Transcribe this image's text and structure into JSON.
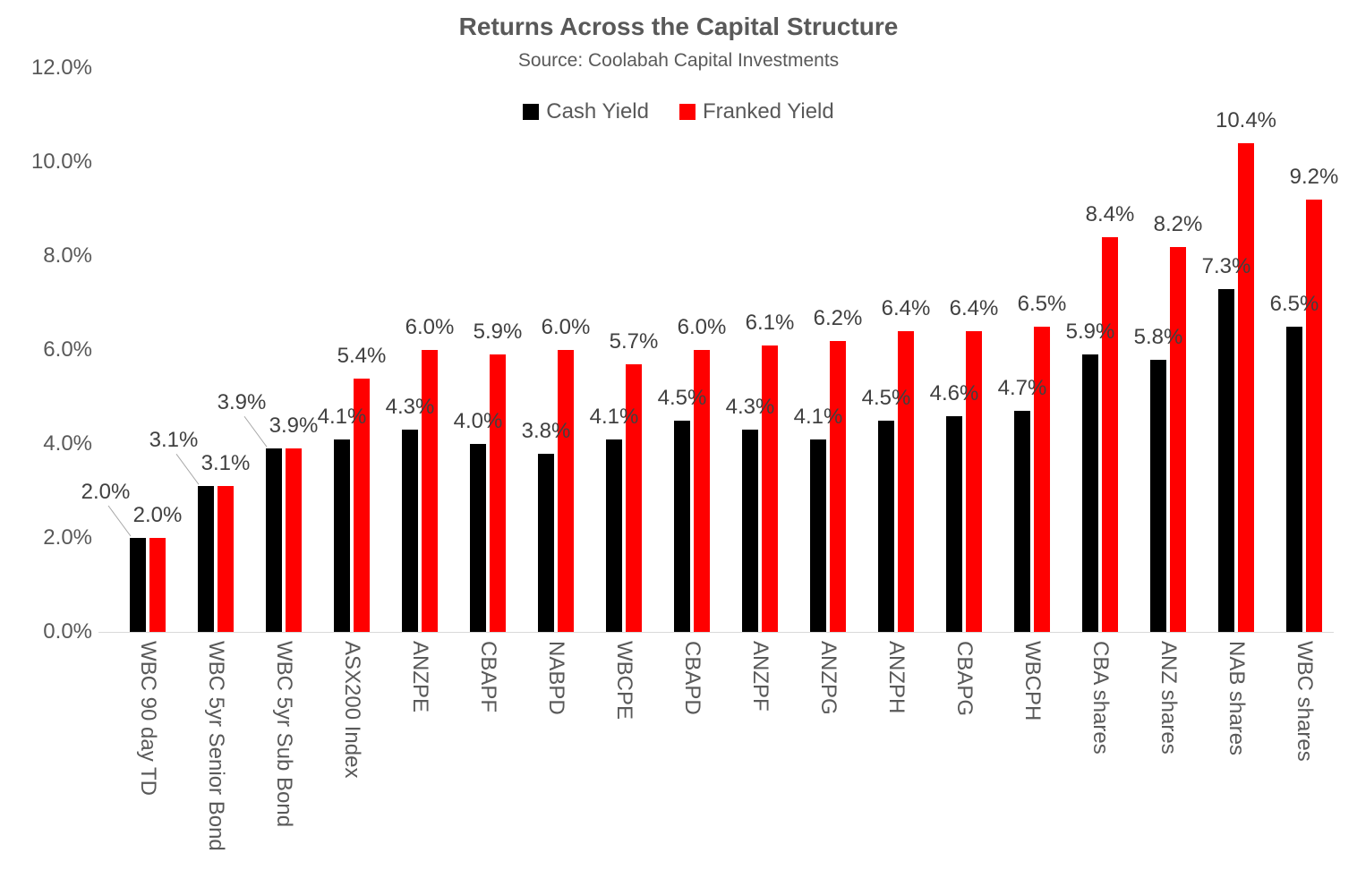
{
  "chart_data": {
    "type": "bar",
    "title": "Returns Across the Capital Structure",
    "subtitle": "Source: Coolabah Capital Investments",
    "categories": [
      "WBC 90 day TD",
      "WBC 5yr Senior Bond",
      "WBC 5yr Sub Bond",
      "ASX200 Index",
      "ANZPE",
      "CBAPF",
      "NABPD",
      "WBCPE",
      "CBAPD",
      "ANZPF",
      "ANZPG",
      "ANZPH",
      "CBAPG",
      "WBCPH",
      "CBA shares",
      "ANZ shares",
      "NAB shares",
      "WBC shares"
    ],
    "series": [
      {
        "name": "Cash Yield",
        "color": "#000000",
        "values": [
          2.0,
          3.1,
          3.9,
          4.1,
          4.3,
          4.0,
          3.8,
          4.1,
          4.5,
          4.3,
          4.1,
          4.5,
          4.6,
          4.7,
          5.9,
          5.8,
          7.3,
          6.5
        ],
        "labels": [
          "2.0%",
          "3.1%",
          "3.9%",
          "4.1%",
          "4.3%",
          "4.0%",
          "3.8%",
          "4.1%",
          "4.5%",
          "4.3%",
          "4.1%",
          "4.5%",
          "4.6%",
          "4.7%",
          "5.9%",
          "5.8%",
          "7.3%",
          "6.5%"
        ]
      },
      {
        "name": "Franked Yield",
        "color": "#FF0000",
        "values": [
          2.0,
          3.1,
          3.9,
          5.4,
          6.0,
          5.9,
          6.0,
          5.7,
          6.0,
          6.1,
          6.2,
          6.4,
          6.4,
          6.5,
          8.4,
          8.2,
          10.4,
          9.2
        ],
        "labels": [
          "2.0%",
          "3.1%",
          "3.9%",
          "5.4%",
          "6.0%",
          "5.9%",
          "6.0%",
          "5.7%",
          "6.0%",
          "6.1%",
          "6.2%",
          "6.4%",
          "6.4%",
          "6.5%",
          "8.4%",
          "8.2%",
          "10.4%",
          "9.2%"
        ]
      }
    ],
    "ylim": [
      0,
      12
    ],
    "ytick_step": 2,
    "yticks": [
      "0.0%",
      "2.0%",
      "4.0%",
      "6.0%",
      "8.0%",
      "10.0%",
      "12.0%"
    ],
    "grid": false,
    "legend_position": "top",
    "data_labels": true,
    "colors": {
      "cash_series": "#000000",
      "franked_series": "#FF0000",
      "title_text": "#595959",
      "axis_text": "#595959",
      "data_label_text": "#404040",
      "axis_line": "#D9D9D9",
      "leader_line": "#A6A6A6",
      "background": "#FFFFFF"
    }
  }
}
